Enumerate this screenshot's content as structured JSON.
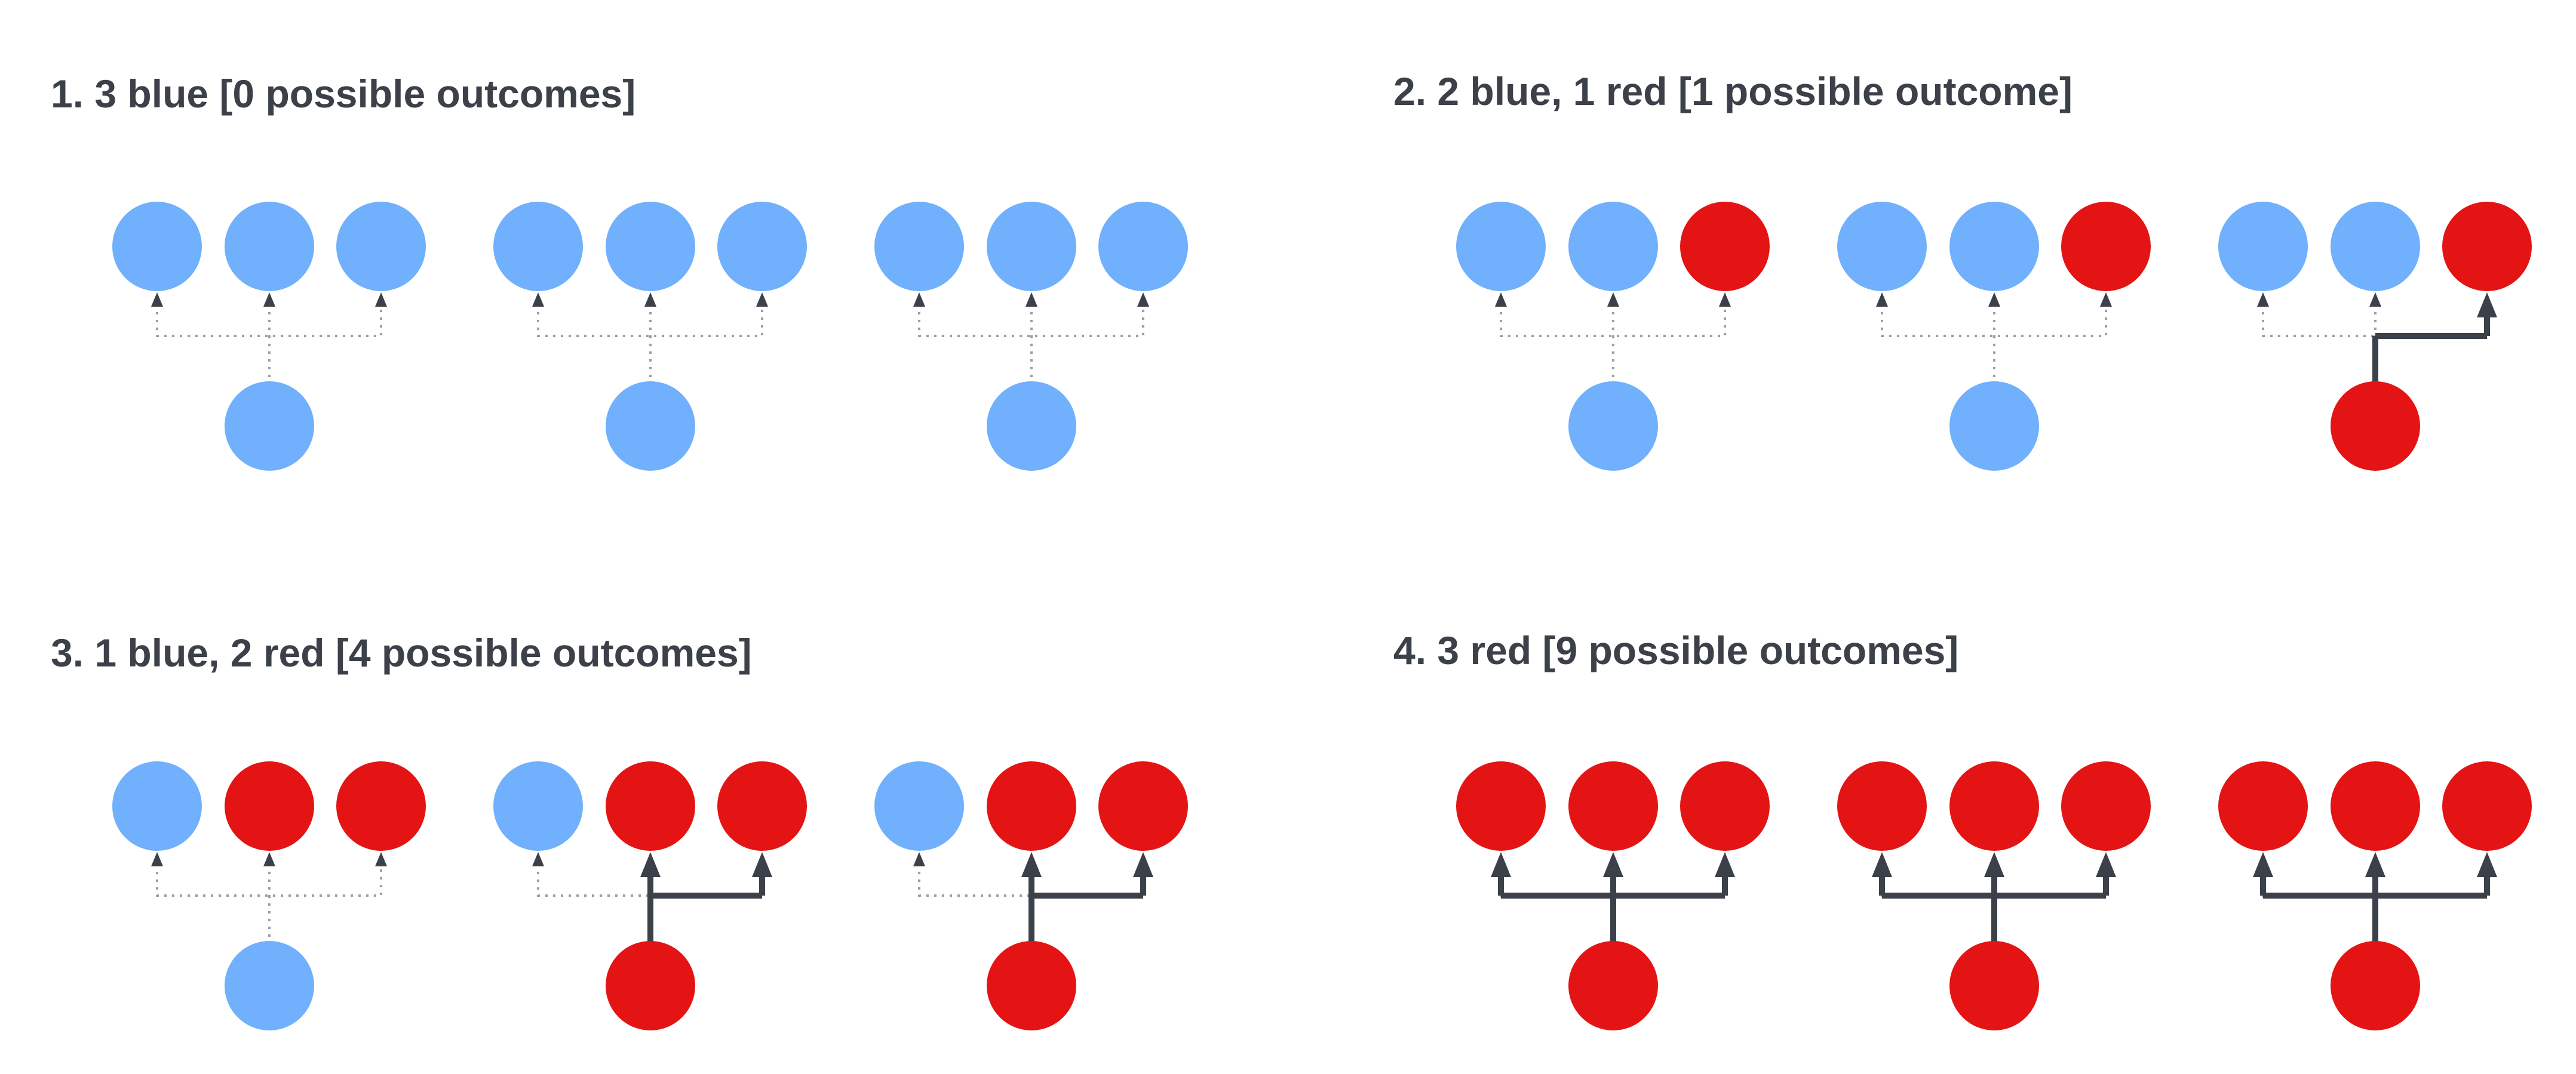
{
  "colors": {
    "blue": "#70b0fc",
    "red": "#e41414",
    "ink": "#3b4049",
    "dotted": "#9aa0a6"
  },
  "panels": [
    {
      "title": "1. 3 blue [0 possible outcomes]",
      "scenarios": [
        {
          "top": [
            "blue",
            "blue",
            "blue"
          ],
          "bottom": "blue",
          "solid_targets": []
        },
        {
          "top": [
            "blue",
            "blue",
            "blue"
          ],
          "bottom": "blue",
          "solid_targets": []
        },
        {
          "top": [
            "blue",
            "blue",
            "blue"
          ],
          "bottom": "blue",
          "solid_targets": []
        }
      ]
    },
    {
      "title": "2. 2 blue, 1 red [1 possible outcome]",
      "scenarios": [
        {
          "top": [
            "blue",
            "blue",
            "red"
          ],
          "bottom": "blue",
          "solid_targets": []
        },
        {
          "top": [
            "blue",
            "blue",
            "red"
          ],
          "bottom": "blue",
          "solid_targets": []
        },
        {
          "top": [
            "blue",
            "blue",
            "red"
          ],
          "bottom": "red",
          "solid_targets": [
            2
          ]
        }
      ]
    },
    {
      "title": "3. 1 blue, 2 red [4 possible outcomes]",
      "scenarios": [
        {
          "top": [
            "blue",
            "red",
            "red"
          ],
          "bottom": "blue",
          "solid_targets": []
        },
        {
          "top": [
            "blue",
            "red",
            "red"
          ],
          "bottom": "red",
          "solid_targets": [
            1,
            2
          ]
        },
        {
          "top": [
            "blue",
            "red",
            "red"
          ],
          "bottom": "red",
          "solid_targets": [
            1,
            2
          ]
        }
      ]
    },
    {
      "title": "4. 3 red [9 possible outcomes]",
      "scenarios": [
        {
          "top": [
            "red",
            "red",
            "red"
          ],
          "bottom": "red",
          "solid_targets": [
            0,
            1,
            2
          ]
        },
        {
          "top": [
            "red",
            "red",
            "red"
          ],
          "bottom": "red",
          "solid_targets": [
            0,
            1,
            2
          ]
        },
        {
          "top": [
            "red",
            "red",
            "red"
          ],
          "bottom": "red",
          "solid_targets": [
            0,
            1,
            2
          ]
        }
      ]
    }
  ]
}
